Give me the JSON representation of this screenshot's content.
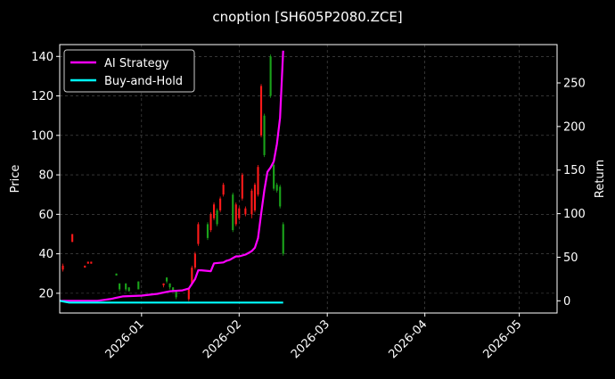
{
  "chart_data": {
    "type": "candlestick-with-lines",
    "title": "cnoption [SH605P2080.ZCE]",
    "ylabel_left": "Price",
    "ylabel_right": "Return",
    "x_axis": {
      "type": "date",
      "range": [
        "2025-12-06",
        "2026-05-13"
      ],
      "tick_dates": [
        "2026-01-01",
        "2026-02-01",
        "2026-03-01",
        "2026-04-01",
        "2026-05-01"
      ],
      "tick_labels": [
        "2026-01",
        "2026-02",
        "2026-03",
        "2026-04",
        "2026-05"
      ]
    },
    "y_left": {
      "range": [
        10,
        146
      ],
      "ticks": [
        20,
        40,
        60,
        80,
        100,
        120,
        140
      ]
    },
    "y_right": {
      "range": [
        -14,
        294
      ],
      "ticks": [
        0,
        50,
        100,
        150,
        200,
        250
      ]
    },
    "grid": true,
    "legend_position": "upper-left",
    "colors": {
      "background": "#000000",
      "up": "#ff1a1a",
      "down": "#1aa31a",
      "ai_strategy": "#ff00ff",
      "buy_and_hold": "#00ffff",
      "grid": "#555555"
    },
    "candles": [
      {
        "date": "2025-12-07",
        "open": 32,
        "close": 34,
        "high": 35,
        "low": 31
      },
      {
        "date": "2025-12-10",
        "open": 46,
        "close": 50,
        "high": 50,
        "low": 46
      },
      {
        "date": "2025-12-14",
        "open": 33,
        "close": 34,
        "high": 34,
        "low": 33
      },
      {
        "date": "2025-12-15",
        "open": 35,
        "close": 36,
        "high": 36,
        "low": 35
      },
      {
        "date": "2025-12-16",
        "open": 35,
        "close": 36,
        "high": 36,
        "low": 35
      },
      {
        "date": "2025-12-24",
        "open": 30,
        "close": 29,
        "high": 30,
        "low": 29
      },
      {
        "date": "2025-12-25",
        "open": 25,
        "close": 22,
        "high": 25,
        "low": 21
      },
      {
        "date": "2025-12-27",
        "open": 25,
        "close": 22,
        "high": 25,
        "low": 21
      },
      {
        "date": "2025-12-28",
        "open": 23,
        "close": 21,
        "high": 23,
        "low": 21
      },
      {
        "date": "2025-12-31",
        "open": 26,
        "close": 22,
        "high": 26,
        "low": 22
      },
      {
        "date": "2026-01-08",
        "open": 24,
        "close": 25,
        "high": 25,
        "low": 23
      },
      {
        "date": "2026-01-09",
        "open": 28,
        "close": 26,
        "high": 28,
        "low": 25
      },
      {
        "date": "2026-01-10",
        "open": 25,
        "close": 23,
        "high": 25,
        "low": 22
      },
      {
        "date": "2026-01-11",
        "open": 23,
        "close": 21,
        "high": 23,
        "low": 21
      },
      {
        "date": "2026-01-12",
        "open": 21,
        "close": 18,
        "high": 21,
        "low": 17
      },
      {
        "date": "2026-01-16",
        "open": 17,
        "close": 22,
        "high": 22,
        "low": 16
      },
      {
        "date": "2026-01-17",
        "open": 25,
        "close": 33,
        "high": 34,
        "low": 24
      },
      {
        "date": "2026-01-18",
        "open": 33,
        "close": 40,
        "high": 41,
        "low": 32
      },
      {
        "date": "2026-01-19",
        "open": 45,
        "close": 55,
        "high": 56,
        "low": 44
      },
      {
        "date": "2026-01-22",
        "open": 55,
        "close": 48,
        "high": 56,
        "low": 47
      },
      {
        "date": "2026-01-23",
        "open": 52,
        "close": 60,
        "high": 61,
        "low": 51
      },
      {
        "date": "2026-01-24",
        "open": 58,
        "close": 65,
        "high": 66,
        "low": 57
      },
      {
        "date": "2026-01-25",
        "open": 62,
        "close": 55,
        "high": 63,
        "low": 54
      },
      {
        "date": "2026-01-26",
        "open": 62,
        "close": 68,
        "high": 69,
        "low": 61
      },
      {
        "date": "2026-01-27",
        "open": 70,
        "close": 75,
        "high": 76,
        "low": 69
      },
      {
        "date": "2026-01-30",
        "open": 70,
        "close": 52,
        "high": 71,
        "low": 51
      },
      {
        "date": "2026-01-31",
        "open": 55,
        "close": 65,
        "high": 66,
        "low": 54
      },
      {
        "date": "2026-02-01",
        "open": 58,
        "close": 63,
        "high": 64,
        "low": 57
      },
      {
        "date": "2026-02-02",
        "open": 68,
        "close": 80,
        "high": 81,
        "low": 67
      },
      {
        "date": "2026-02-03",
        "open": 60,
        "close": 63,
        "high": 64,
        "low": 59
      },
      {
        "date": "2026-02-05",
        "open": 60,
        "close": 72,
        "high": 73,
        "low": 58
      },
      {
        "date": "2026-02-06",
        "open": 62,
        "close": 75,
        "high": 76,
        "low": 61
      },
      {
        "date": "2026-02-07",
        "open": 70,
        "close": 84,
        "high": 85,
        "low": 69
      },
      {
        "date": "2026-02-08",
        "open": 100,
        "close": 125,
        "high": 126,
        "low": 99
      },
      {
        "date": "2026-02-09",
        "open": 110,
        "close": 90,
        "high": 111,
        "low": 89
      },
      {
        "date": "2026-02-11",
        "open": 140,
        "close": 120,
        "high": 141,
        "low": 119
      },
      {
        "date": "2026-02-12",
        "open": 85,
        "close": 73,
        "high": 86,
        "low": 72
      },
      {
        "date": "2026-02-13",
        "open": 75,
        "close": 72,
        "high": 76,
        "low": 71
      },
      {
        "date": "2026-02-14",
        "open": 74,
        "close": 64,
        "high": 75,
        "low": 63
      },
      {
        "date": "2026-02-15",
        "open": 55,
        "close": 40,
        "high": 56,
        "low": 39
      }
    ],
    "series": [
      {
        "name": "AI Strategy",
        "x": [
          "2025-12-06",
          "2025-12-09",
          "2025-12-18",
          "2025-12-22",
          "2025-12-26",
          "2026-01-01",
          "2026-01-06",
          "2026-01-10",
          "2026-01-14",
          "2026-01-16",
          "2026-01-18",
          "2026-01-19",
          "2026-01-20",
          "2026-01-23",
          "2026-01-24",
          "2026-01-27",
          "2026-01-28",
          "2026-01-29",
          "2026-01-30",
          "2026-01-31",
          "2026-02-01",
          "2026-02-03",
          "2026-02-04",
          "2026-02-05",
          "2026-02-06",
          "2026-02-07",
          "2026-02-08",
          "2026-02-09",
          "2026-02-10",
          "2026-02-11",
          "2026-02-12",
          "2026-02-13",
          "2026-02-14",
          "2026-02-15"
        ],
        "y": [
          0,
          0,
          0,
          2,
          5,
          6,
          8,
          11,
          12,
          14,
          25,
          35,
          35,
          34,
          43,
          44,
          46,
          47,
          49,
          51,
          51,
          53,
          55,
          57,
          61,
          72,
          100,
          127,
          148,
          153,
          160,
          180,
          210,
          287
        ]
      },
      {
        "name": "Buy-and-Hold",
        "x": [
          "2025-12-06",
          "2025-12-09",
          "2026-02-15"
        ],
        "y": [
          0,
          -2,
          -2
        ]
      }
    ]
  }
}
